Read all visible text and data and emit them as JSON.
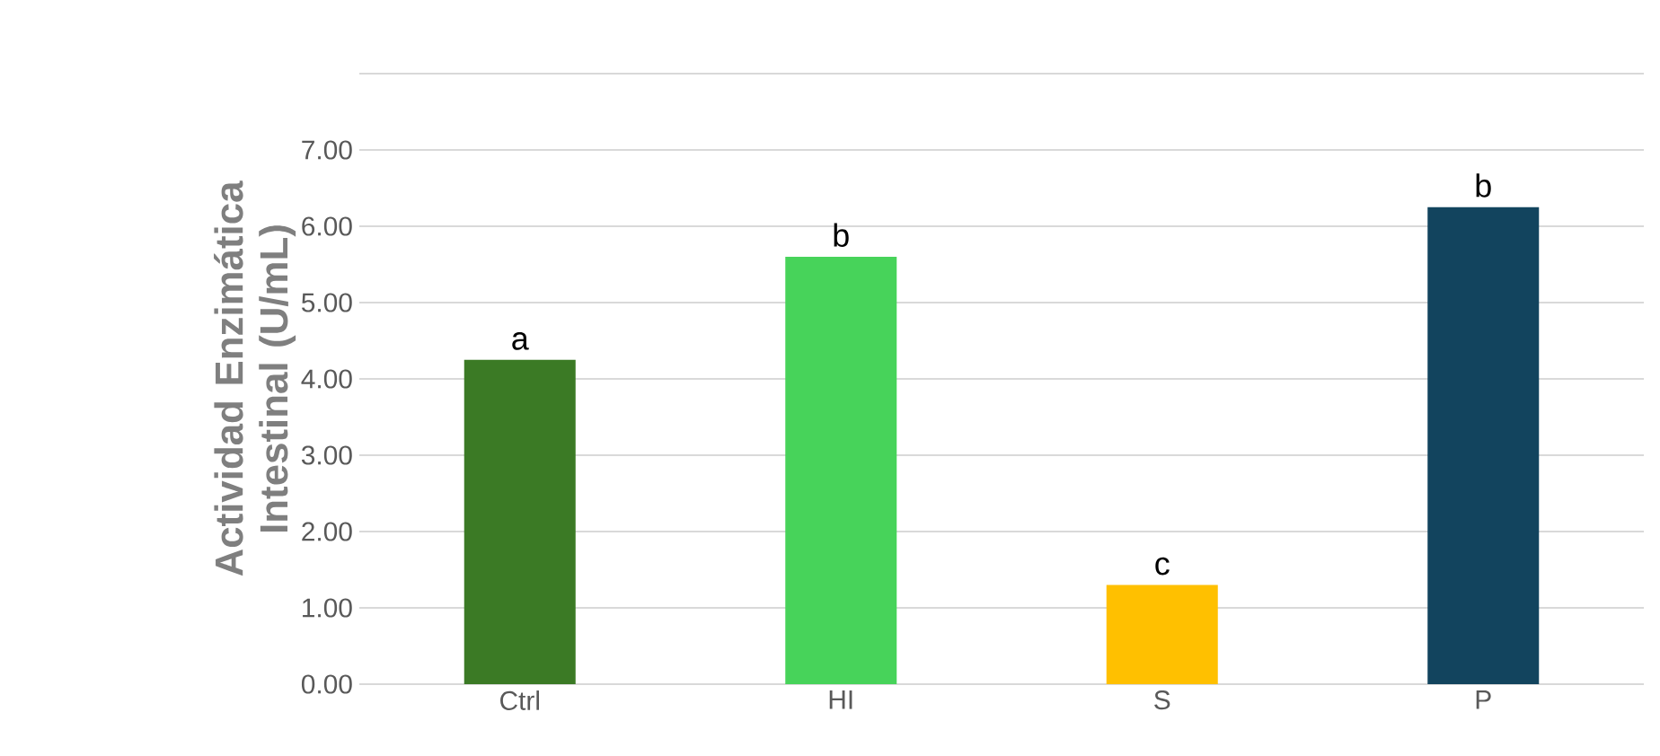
{
  "chart_data": {
    "type": "bar",
    "ylabel": "Actividad Enzimática Intestinal (U/mL)",
    "categories": [
      "Ctrl",
      "HI",
      "S",
      "P"
    ],
    "values": [
      4.25,
      5.6,
      1.3,
      6.25
    ],
    "colors": [
      "#3b7a25",
      "#47d35a",
      "#ffc000",
      "#12445e"
    ],
    "ylim": [
      0,
      8
    ],
    "yticks": [
      {
        "value": 0,
        "label": "0.00"
      },
      {
        "value": 1,
        "label": "1.00"
      },
      {
        "value": 2,
        "label": "2.00"
      },
      {
        "value": 3,
        "label": "3.00"
      },
      {
        "value": 4,
        "label": "4.00"
      },
      {
        "value": 5,
        "label": "5.00"
      },
      {
        "value": 6,
        "label": "6.00"
      },
      {
        "value": 7,
        "label": "7.00"
      },
      {
        "value": 8,
        "label": null
      }
    ],
    "grid": "y",
    "annotations": [
      {
        "text": "a",
        "x": "Ctrl",
        "y": 4.25
      },
      {
        "text": "b",
        "x": "HI",
        "y": 5.6
      },
      {
        "text": "c",
        "x": "S",
        "y": 1.3
      },
      {
        "text": "b",
        "x": "P",
        "y": 6.25
      }
    ]
  }
}
